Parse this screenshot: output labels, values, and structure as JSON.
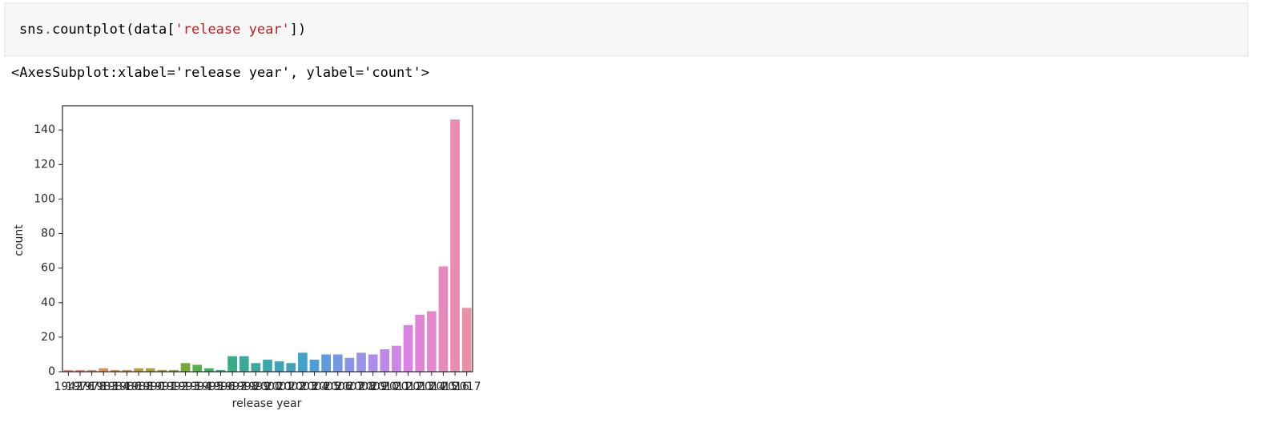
{
  "code_tokens": [
    "sns",
    ".",
    "countplot(data[",
    "'release year'",
    "])"
  ],
  "output": "<AxesSubplot:xlabel='release year', ylabel='count'>",
  "chart_data": {
    "type": "bar",
    "xlabel": "release year",
    "ylabel": "count",
    "categories": [
      "1942",
      "1976",
      "1978",
      "1983",
      "1984",
      "1986",
      "1988",
      "1990",
      "1991",
      "1992",
      "1993",
      "1994",
      "1995",
      "1996",
      "1997",
      "1998",
      "1999",
      "2000",
      "2001",
      "2002",
      "2003",
      "2004",
      "2005",
      "2006",
      "2007",
      "2008",
      "2009",
      "2010",
      "2011",
      "2012",
      "2013",
      "2014",
      "2015",
      "2016",
      "2017"
    ],
    "values": [
      1,
      1,
      1,
      2,
      1,
      1,
      2,
      2,
      1,
      1,
      5,
      4,
      2,
      1,
      9,
      9,
      5,
      7,
      6,
      5,
      11,
      7,
      10,
      10,
      8,
      11,
      10,
      13,
      15,
      27,
      33,
      35,
      61,
      146,
      37
    ],
    "colors": [
      "#e9837b",
      "#e6867a",
      "#e38a6a",
      "#df8e4e",
      "#d6933d",
      "#c99838",
      "#bb9c35",
      "#ac9f34",
      "#9ca334",
      "#8aa734",
      "#73ab35",
      "#58ad4a",
      "#3db160",
      "#38ae78",
      "#39ab88",
      "#3aa995",
      "#3ba7a0",
      "#3ca6aa",
      "#3da5b4",
      "#3fa3bf",
      "#42a1ca",
      "#4d9ed6",
      "#5e9ae0",
      "#7497e6",
      "#8994e9",
      "#9b91ea",
      "#ad8de9",
      "#bd89e8",
      "#cc86e6",
      "#d984e2",
      "#e084d8",
      "#e487cc",
      "#e68abd",
      "#e88db0",
      "#e890a4"
    ],
    "ylim": [
      0,
      154
    ],
    "yticks": [
      0,
      20,
      40,
      60,
      80,
      100,
      120,
      140
    ],
    "grid": false
  }
}
